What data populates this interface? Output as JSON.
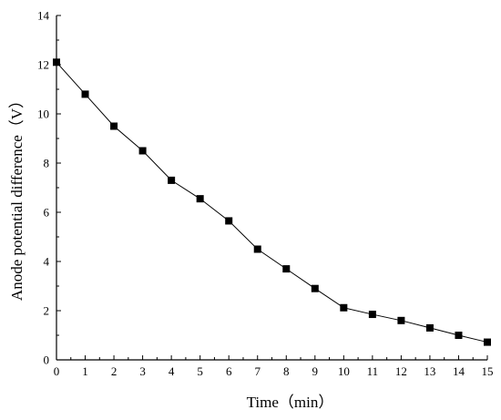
{
  "chart_data": {
    "type": "line",
    "title": "",
    "xlabel": "Time（min）",
    "ylabel": "Anode potential difference（V）",
    "x": [
      0,
      1,
      2,
      3,
      4,
      5,
      6,
      7,
      8,
      9,
      10,
      11,
      12,
      13,
      14,
      15
    ],
    "series": [
      {
        "name": "",
        "values": [
          12.1,
          10.8,
          9.5,
          8.5,
          7.3,
          6.55,
          5.65,
          4.5,
          3.7,
          2.9,
          2.12,
          1.85,
          1.6,
          1.3,
          1.0,
          0.72
        ]
      }
    ],
    "xlim": [
      0,
      15
    ],
    "ylim": [
      0,
      14
    ],
    "xticks": [
      "0",
      "1",
      "2",
      "3",
      "4",
      "5",
      "6",
      "7",
      "8",
      "9",
      "10",
      "11",
      "12",
      "13",
      "14",
      "15"
    ],
    "yticks": [
      "0",
      "2",
      "4",
      "6",
      "8",
      "10",
      "12",
      "14"
    ],
    "grid": false,
    "marker": "square",
    "color": "#000000"
  }
}
